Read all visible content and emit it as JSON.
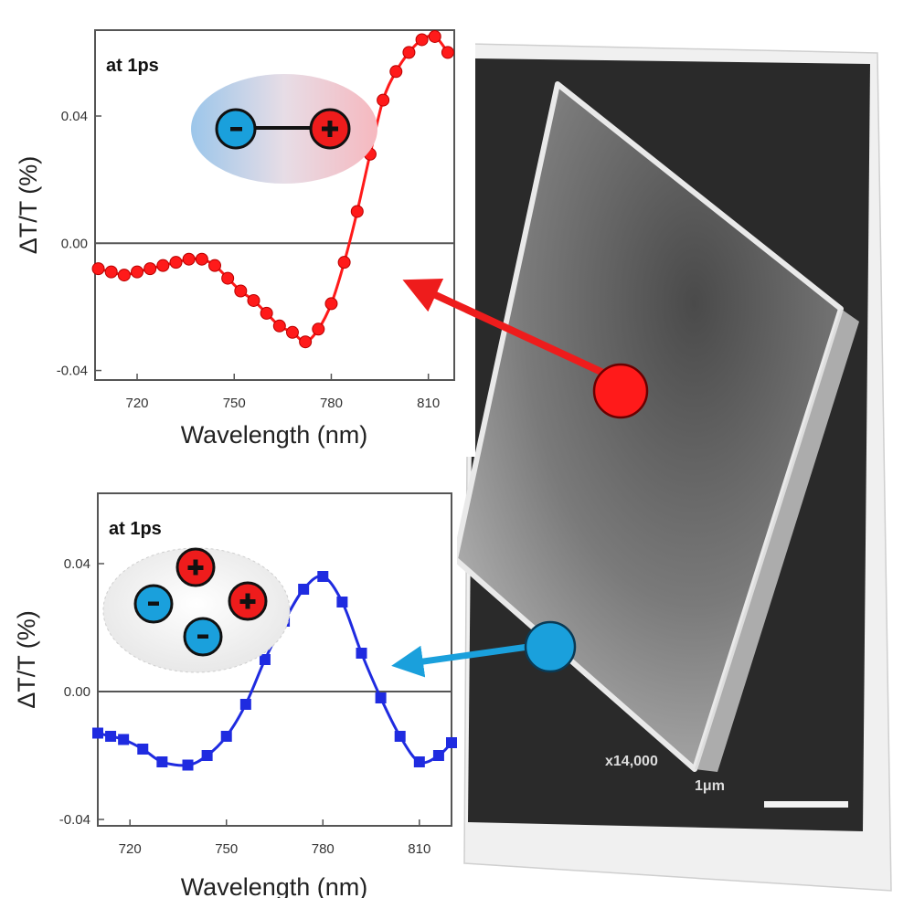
{
  "colors": {
    "top_series": "#ff1a1a",
    "bottom_series": "#1f2be0",
    "electron": "#1aa0dc",
    "hole": "#ee1c1c"
  },
  "sem": {
    "magnification": "x14,000",
    "scale_label": "1μm"
  },
  "icons": {
    "top_inset": "bound-exciton-pair-icon",
    "bottom_inset": "free-carriers-icon",
    "red_marker": "red-circle-marker",
    "blue_marker": "blue-circle-marker"
  },
  "chart_data": [
    {
      "type": "line",
      "title": "",
      "annotation": "at 1ps",
      "xlabel": "Wavelength (nm)",
      "ylabel": "ΔT/T (%)",
      "xlim": [
        707,
        818
      ],
      "ylim": [
        -0.043,
        0.067
      ],
      "xticks": [
        "720",
        "750",
        "780",
        "810"
      ],
      "xtick_values": [
        720,
        750,
        780,
        810
      ],
      "yticks": [
        "0.04",
        "0.00",
        "-0.04"
      ],
      "ytick_values": [
        0.04,
        0.0,
        -0.04
      ],
      "marker": "circle",
      "zero_line": true,
      "series": [
        {
          "x": [
            708,
            712,
            716,
            720,
            724,
            728,
            732,
            736,
            740,
            744,
            748,
            752,
            756,
            760,
            764,
            768,
            772,
            776,
            780,
            784,
            788,
            792,
            796,
            800,
            804,
            808,
            812,
            816
          ],
          "values": [
            -0.008,
            -0.009,
            -0.01,
            -0.009,
            -0.008,
            -0.007,
            -0.006,
            -0.005,
            -0.005,
            -0.007,
            -0.011,
            -0.015,
            -0.018,
            -0.022,
            -0.026,
            -0.028,
            -0.031,
            -0.027,
            -0.019,
            -0.006,
            0.01,
            0.028,
            0.045,
            0.054,
            0.06,
            0.064,
            0.065,
            0.06
          ]
        }
      ]
    },
    {
      "type": "line",
      "title": "",
      "annotation": "at 1ps",
      "xlabel": "Wavelength (nm)",
      "ylabel": "ΔT/T (%)",
      "xlim": [
        710,
        820
      ],
      "ylim": [
        -0.042,
        0.062
      ],
      "xticks": [
        "720",
        "750",
        "780",
        "810"
      ],
      "xtick_values": [
        720,
        750,
        780,
        810
      ],
      "yticks": [
        "0.04",
        "0.00",
        "-0.04"
      ],
      "ytick_values": [
        0.04,
        0.0,
        -0.04
      ],
      "marker": "square",
      "zero_line": true,
      "series": [
        {
          "x": [
            710,
            714,
            718,
            724,
            730,
            738,
            744,
            750,
            756,
            762,
            768,
            774,
            780,
            786,
            792,
            798,
            804,
            810,
            816,
            820
          ],
          "values": [
            -0.013,
            -0.014,
            -0.015,
            -0.018,
            -0.022,
            -0.023,
            -0.02,
            -0.014,
            -0.004,
            0.01,
            0.022,
            0.032,
            0.036,
            0.028,
            0.012,
            -0.002,
            -0.014,
            -0.022,
            -0.02,
            -0.016
          ]
        }
      ]
    }
  ]
}
